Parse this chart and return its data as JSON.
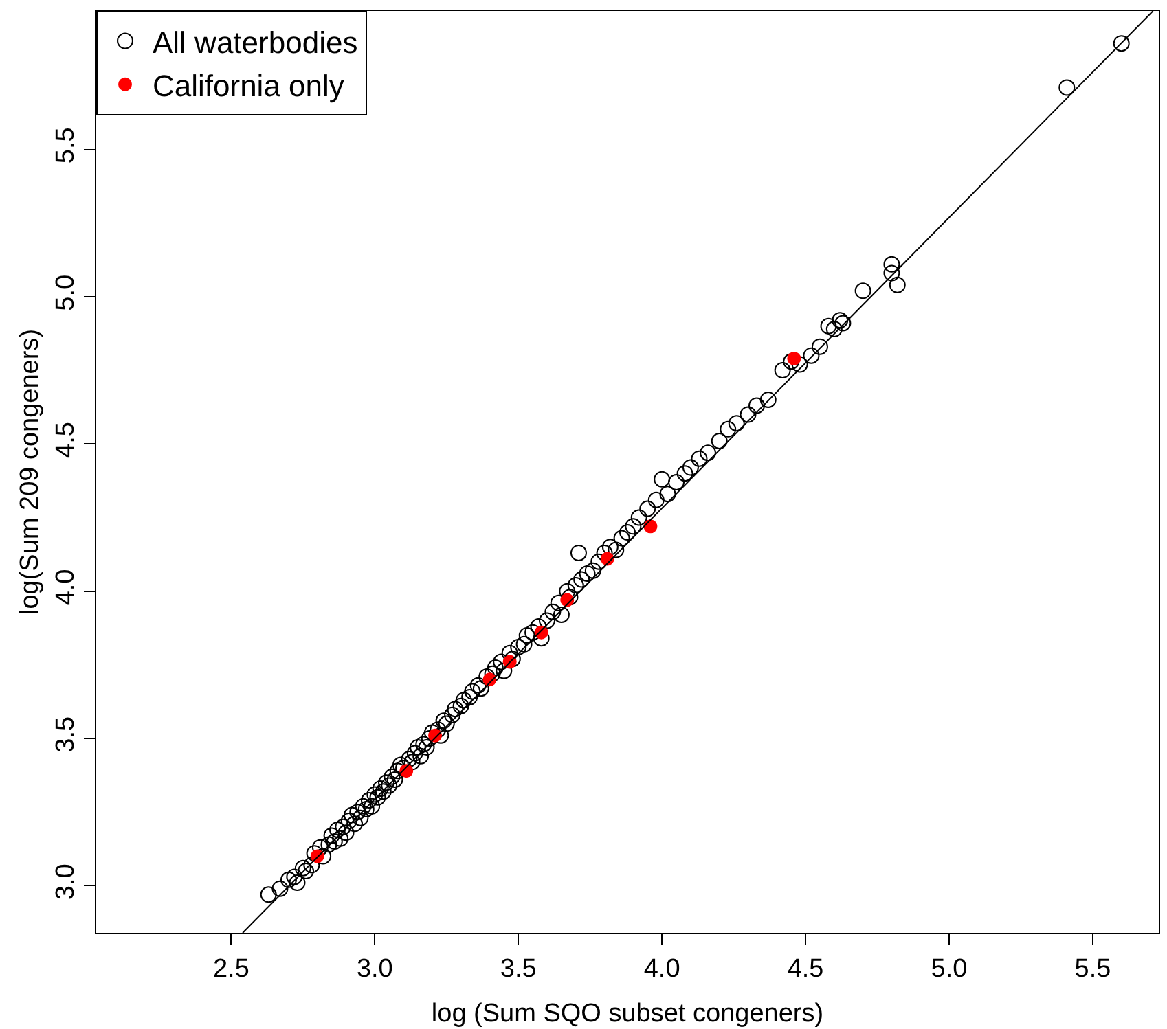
{
  "chart_data": {
    "type": "scatter",
    "xlabel": "log (Sum SQO subset congeners)",
    "ylabel": "log(Sum 209 congeners)",
    "xlim": [
      2.03,
      5.73
    ],
    "ylim": [
      2.84,
      5.97
    ],
    "xticks": [
      {
        "value": 2.5,
        "label": "2.5"
      },
      {
        "value": 3,
        "label": "3.0"
      },
      {
        "value": 3.5,
        "label": "3.5"
      },
      {
        "value": 4,
        "label": "4.0"
      },
      {
        "value": 4.5,
        "label": "4.5"
      },
      {
        "value": 5,
        "label": "5.0"
      },
      {
        "value": 5.5,
        "label": "5.5"
      }
    ],
    "yticks": [
      {
        "value": 3,
        "label": "3.0"
      },
      {
        "value": 3.5,
        "label": "3.5"
      },
      {
        "value": 4,
        "label": "4.0"
      },
      {
        "value": 4.5,
        "label": "4.5"
      },
      {
        "value": 5,
        "label": "5.0"
      },
      {
        "value": 5.5,
        "label": "5.5"
      }
    ],
    "legend": "top left",
    "marker": "circle",
    "series": [
      {
        "name": "All waterbodies",
        "color": "#000000",
        "x": [
          2.63,
          2.67,
          2.7,
          2.72,
          2.73,
          2.75,
          2.76,
          2.78,
          2.79,
          2.81,
          2.82,
          2.84,
          2.85,
          2.86,
          2.87,
          2.88,
          2.89,
          2.9,
          2.91,
          2.92,
          2.93,
          2.94,
          2.95,
          2.96,
          2.97,
          2.98,
          2.99,
          3.0,
          3.01,
          3.02,
          3.03,
          3.04,
          3.05,
          3.06,
          3.07,
          3.08,
          3.09,
          3.1,
          3.12,
          3.13,
          3.14,
          3.15,
          3.16,
          3.17,
          3.18,
          3.19,
          3.2,
          3.22,
          3.23,
          3.24,
          3.25,
          3.27,
          3.28,
          3.3,
          3.31,
          3.33,
          3.34,
          3.36,
          3.37,
          3.39,
          3.41,
          3.42,
          3.44,
          3.45,
          3.47,
          3.48,
          3.5,
          3.52,
          3.53,
          3.55,
          3.57,
          3.58,
          3.6,
          3.62,
          3.64,
          3.65,
          3.67,
          3.68,
          3.7,
          3.71,
          3.72,
          3.74,
          3.76,
          3.78,
          3.8,
          3.82,
          3.84,
          3.86,
          3.88,
          3.9,
          3.92,
          3.95,
          3.98,
          4.0,
          4.02,
          4.05,
          4.08,
          4.1,
          4.13,
          4.16,
          4.2,
          4.23,
          4.26,
          4.3,
          4.33,
          4.37,
          4.42,
          4.45,
          4.48,
          4.52,
          4.55,
          4.58,
          4.6,
          4.62,
          4.63,
          4.7,
          4.8,
          4.8,
          4.82,
          5.41,
          5.6
        ],
        "values": [
          2.97,
          2.99,
          3.02,
          3.03,
          3.01,
          3.06,
          3.05,
          3.07,
          3.11,
          3.13,
          3.1,
          3.14,
          3.17,
          3.15,
          3.19,
          3.16,
          3.2,
          3.18,
          3.22,
          3.24,
          3.21,
          3.25,
          3.23,
          3.27,
          3.26,
          3.29,
          3.27,
          3.31,
          3.3,
          3.33,
          3.32,
          3.35,
          3.34,
          3.37,
          3.36,
          3.39,
          3.41,
          3.4,
          3.43,
          3.42,
          3.45,
          3.47,
          3.44,
          3.48,
          3.47,
          3.5,
          3.52,
          3.53,
          3.51,
          3.56,
          3.55,
          3.58,
          3.6,
          3.61,
          3.63,
          3.64,
          3.66,
          3.68,
          3.67,
          3.71,
          3.72,
          3.74,
          3.76,
          3.73,
          3.79,
          3.77,
          3.81,
          3.82,
          3.85,
          3.86,
          3.88,
          3.84,
          3.9,
          3.93,
          3.96,
          3.92,
          4.0,
          3.98,
          4.02,
          4.13,
          4.04,
          4.06,
          4.07,
          4.1,
          4.13,
          4.15,
          4.14,
          4.18,
          4.2,
          4.22,
          4.25,
          4.28,
          4.31,
          4.38,
          4.33,
          4.37,
          4.4,
          4.42,
          4.45,
          4.47,
          4.51,
          4.55,
          4.57,
          4.6,
          4.63,
          4.65,
          4.75,
          4.78,
          4.77,
          4.8,
          4.83,
          4.9,
          4.89,
          4.92,
          4.91,
          5.02,
          5.11,
          5.08,
          5.04,
          5.71,
          5.86
        ]
      },
      {
        "name": "California only",
        "color": "#ff0000",
        "x": [
          2.8,
          3.11,
          3.21,
          3.4,
          3.47,
          3.58,
          3.67,
          3.81,
          3.96,
          4.46
        ],
        "values": [
          3.1,
          3.39,
          3.51,
          3.7,
          3.76,
          3.86,
          3.97,
          4.11,
          4.22,
          4.79
        ]
      },
      {
        "type": "line",
        "marker": "none",
        "color": "#000000",
        "x": [
          2.54,
          5.71
        ],
        "values": [
          2.84,
          5.97
        ]
      }
    ]
  }
}
